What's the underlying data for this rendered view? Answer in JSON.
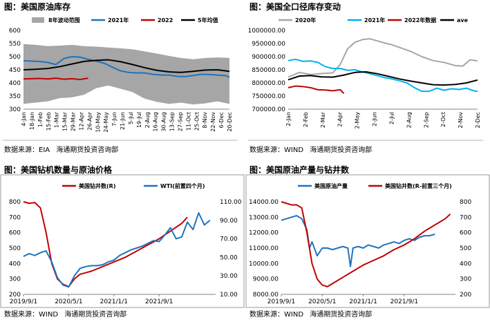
{
  "source_org": "海通期货投资咨询部",
  "panels": [
    {
      "title": "图：美国原油库存",
      "source_label": "数据来源：EIA",
      "chart_data": {
        "type": "line",
        "title": "美国原油库存",
        "ylim": [
          300,
          600
        ],
        "yticks": [
          300,
          350,
          400,
          450,
          500,
          550,
          600
        ],
        "xticks": [
          "4-Jan",
          "18-Jan",
          "1-Feb",
          "15-Feb",
          "1-Mar",
          "15-Mar",
          "29-Mar",
          "12-Apr",
          "26-Apr",
          "10-May",
          "24-May",
          "7-Jun",
          "21-Jun",
          "5-Jul",
          "19-Jul",
          "2-Aug",
          "16-Aug",
          "30-Aug",
          "13-Sep",
          "27-Sep",
          "11-Oct",
          "25-Oct",
          "8-Nov",
          "22-Nov",
          "6-Dec",
          "20-Dec"
        ],
        "x_range": [
          0,
          51
        ],
        "legend": [
          "8年波动范围",
          "2021年",
          "2022",
          "5年均值"
        ],
        "band": {
          "name": "8年波动范围",
          "color": "#a6a6a6",
          "x": [
            0,
            3,
            6,
            9,
            12,
            15,
            18,
            21,
            24,
            27,
            30,
            33,
            36,
            39,
            42,
            45,
            48,
            51
          ],
          "upper": [
            548,
            545,
            540,
            542,
            545,
            540,
            538,
            535,
            532,
            528,
            520,
            512,
            503,
            495,
            490,
            495,
            497,
            495
          ],
          "lower": [
            320,
            325,
            330,
            342,
            345,
            355,
            380,
            390,
            378,
            365,
            340,
            328,
            320,
            325,
            318,
            322,
            330,
            320
          ]
        },
        "series": [
          {
            "name": "2021年",
            "color": "#1e73be",
            "x": [
              0,
              2,
              4,
              6,
              8,
              10,
              12,
              14,
              16,
              18,
              20,
              22,
              24,
              26,
              28,
              30,
              32,
              34,
              36,
              38,
              40,
              42,
              44,
              46,
              48,
              50,
              51
            ],
            "values": [
              485,
              483,
              482,
              478,
              470,
              493,
              500,
              498,
              490,
              483,
              475,
              460,
              446,
              440,
              438,
              438,
              433,
              430,
              430,
              425,
              424,
              428,
              433,
              432,
              430,
              428,
              422
            ]
          },
          {
            "name": "2022",
            "color": "#c00000",
            "x": [
              0,
              2,
              4,
              6,
              8,
              10,
              12,
              14,
              16
            ],
            "values": [
              415,
              416,
              417,
              415,
              418,
              414,
              416,
              413,
              418
            ]
          },
          {
            "name": "5年均值",
            "color": "#000000",
            "x": [
              0,
              3,
              6,
              9,
              12,
              15,
              18,
              21,
              24,
              27,
              30,
              33,
              36,
              39,
              42,
              45,
              48,
              51
            ],
            "values": [
              450,
              452,
              455,
              462,
              472,
              482,
              486,
              488,
              481,
              470,
              458,
              448,
              442,
              440,
              444,
              449,
              450,
              444
            ]
          }
        ]
      }
    },
    {
      "title": "图：美国全口径库存变动",
      "source_label": "数据来源：WIND",
      "chart_data": {
        "type": "line",
        "title": "美国全口径库存变动",
        "ylim": [
          700000,
          1000000
        ],
        "yticks": [
          700000,
          750000,
          800000,
          850000,
          900000,
          950000,
          1000000
        ],
        "ytick_labels": [
          "700000.00",
          "750000.00",
          "800000.00",
          "850000.00",
          "900000.00",
          "950000.00",
          "1000000.00"
        ],
        "xticks": [
          "2-Jan",
          "2-Feb",
          "2-Mar",
          "2-Apr",
          "2-May",
          "2-Jun",
          "2-Jul",
          "2-Aug",
          "2-Sep",
          "2-Oct",
          "2-Nov",
          "2-Dec"
        ],
        "x_range": [
          0,
          51
        ],
        "legend": [
          "2020年",
          "2021年",
          "2022年数据",
          "ave"
        ],
        "legend_labels": [
          "2020年",
          "2021年",
          "2022年数据",
          "ave"
        ],
        "series": [
          {
            "name": "2020年",
            "color": "#a6a6a6",
            "x": [
              0,
              3,
              6,
              9,
              12,
              14,
              16,
              18,
              20,
              22,
              24,
              26,
              28,
              30,
              33,
              36,
              39,
              42,
              45,
              47,
              49,
              51
            ],
            "values": [
              822000,
              840000,
              832000,
              836000,
              838000,
              870000,
              930000,
              955000,
              965000,
              968000,
              960000,
              952000,
              945000,
              935000,
              920000,
              900000,
              885000,
              878000,
              866000,
              864000,
              888000,
              884000
            ]
          },
          {
            "name": "2021年",
            "color": "#00b0f0",
            "x": [
              0,
              2,
              4,
              6,
              8,
              10,
              12,
              14,
              16,
              18,
              20,
              22,
              24,
              26,
              28,
              30,
              32,
              34,
              36,
              38,
              40,
              42,
              44,
              46,
              48,
              50,
              51
            ],
            "values": [
              885000,
              890000,
              882000,
              884000,
              878000,
              862000,
              855000,
              855000,
              848000,
              850000,
              842000,
              835000,
              828000,
              820000,
              815000,
              808000,
              800000,
              782000,
              768000,
              768000,
              780000,
              772000,
              778000,
              775000,
              780000,
              770000,
              768000
            ]
          },
          {
            "name": "2022年数据",
            "color": "#c00000",
            "x": [
              0,
              2,
              4,
              6,
              8,
              10,
              12,
              14,
              15
            ],
            "values": [
              782000,
              788000,
              786000,
              782000,
              774000,
              773000,
              770000,
              774000,
              760000
            ]
          },
          {
            "name": "ave",
            "color": "#000000",
            "x": [
              0,
              3,
              6,
              9,
              12,
              15,
              18,
              21,
              24,
              27,
              30,
              33,
              36,
              39,
              42,
              45,
              48,
              51
            ],
            "values": [
              812000,
              826000,
              828000,
              823000,
              822000,
              830000,
              840000,
              842000,
              835000,
              825000,
              815000,
              807000,
              800000,
              793000,
              792000,
              794000,
              800000,
              811000
            ]
          }
        ]
      }
    },
    {
      "title": "图：美国钻机数量与原油价格",
      "source_label": "数据来源：WIND",
      "chart_data": {
        "type": "line",
        "title": "美国钻机数量与原油价格",
        "ylim": [
          200,
          800
        ],
        "yticks": [
          200,
          300,
          400,
          500,
          600,
          700,
          800
        ],
        "y2lim": [
          10,
          110
        ],
        "y2ticks": [
          10,
          30,
          50,
          70,
          90,
          110
        ],
        "y2tick_labels": [
          "10.00",
          "30.00",
          "50.00",
          "70.00",
          "90.00",
          "110.00"
        ],
        "xticks": [
          "2019/9/1",
          "2020/5/1",
          "2021/1/1",
          "2021/9/1"
        ],
        "x_range": [
          0,
          34
        ],
        "xtick_positions": [
          0,
          8,
          16,
          24
        ],
        "legend": [
          "美国钻井数(R)",
          "WTI(前置四个月)"
        ],
        "legend_labels": [
          "美国钻井数(R)",
          "WTI(前置四个月)"
        ],
        "series": [
          {
            "name": "美国钻井数(R)",
            "axis": "left",
            "color": "#c00000",
            "x": [
              0,
              1,
              2,
              3,
              4,
              5,
              6,
              7,
              8,
              9,
              10,
              12,
              14,
              16,
              18,
              20,
              22,
              24,
              26,
              28,
              29
            ],
            "values": [
              800,
              790,
              795,
              760,
              600,
              400,
              300,
              265,
              250,
              300,
              330,
              350,
              380,
              410,
              440,
              480,
              520,
              560,
              610,
              660,
              700
            ]
          },
          {
            "name": "WTI(前置四个月)",
            "axis": "right",
            "color": "#1e73be",
            "x": [
              0,
              1,
              2,
              3,
              4,
              5,
              6,
              7,
              8,
              9,
              10,
              11,
              12,
              13,
              14,
              15,
              16,
              17,
              18,
              19,
              20,
              21,
              22,
              23,
              24,
              25,
              26,
              27,
              28,
              29,
              30,
              31,
              32,
              33
            ],
            "values": [
              51,
              54,
              52,
              55,
              57,
              45,
              28,
              20,
              18,
              30,
              38,
              40,
              41,
              41,
              42,
              45,
              47,
              52,
              55,
              58,
              60,
              62,
              65,
              68,
              67,
              74,
              82,
              70,
              72,
              88,
              80,
              98,
              85,
              90
            ]
          }
        ]
      }
    },
    {
      "title": "图：美国原油产量与钻井数",
      "source_label": "数据来源：WIND",
      "chart_data": {
        "type": "line",
        "title": "美国原油产量与钻井数",
        "ylim": [
          8000,
          14000
        ],
        "yticks": [
          8000,
          9000,
          10000,
          11000,
          12000,
          13000,
          14000
        ],
        "ytick_labels": [
          "8000.00",
          "9000.00",
          "10000.00",
          "11000.00",
          "12000.00",
          "13000.00",
          "14000.00"
        ],
        "y2lim": [
          200,
          800
        ],
        "y2ticks": [
          200,
          300,
          400,
          500,
          600,
          700,
          800
        ],
        "xticks": [
          "2019/9/1",
          "2020/5/1",
          "2021/1/1",
          "2021/9/1"
        ],
        "x_range": [
          0,
          34
        ],
        "xtick_positions": [
          0,
          8,
          16,
          24
        ],
        "legend": [
          "美国原油产量",
          "美国钻井数(R-前置三个月)"
        ],
        "legend_labels": [
          "美国原油产量",
          "美国钻井数(R-前置三个月)"
        ],
        "series": [
          {
            "name": "美国原油产量",
            "axis": "left",
            "color": "#1e73be",
            "x": [
              0,
              1,
              2,
              3,
              4,
              5,
              5.5,
              6,
              7,
              8,
              9,
              10,
              11,
              12,
              13,
              13.5,
              14,
              15,
              16,
              17,
              18,
              19,
              20,
              21,
              22,
              23,
              24,
              25,
              26,
              27,
              28,
              29,
              30
            ],
            "values": [
              12800,
              12900,
              13000,
              13100,
              12900,
              12200,
              11000,
              11400,
              10500,
              11000,
              11000,
              10900,
              11000,
              11100,
              11000,
              9800,
              11000,
              11100,
              11000,
              11200,
              11100,
              11000,
              11200,
              11300,
              11400,
              11300,
              11500,
              11600,
              11500,
              11700,
              11800,
              11800,
              11900
            ]
          },
          {
            "name": "美国钻井数(R-前置三个月)",
            "axis": "right",
            "color": "#c00000",
            "x": [
              0,
              1,
              2,
              3,
              4,
              5,
              6,
              7,
              8,
              9,
              10,
              12,
              14,
              16,
              18,
              20,
              22,
              24,
              26,
              28,
              30,
              32,
              33
            ],
            "values": [
              800,
              790,
              780,
              780,
              760,
              600,
              400,
              300,
              260,
              250,
              270,
              310,
              350,
              390,
              420,
              450,
              490,
              520,
              560,
              610,
              650,
              690,
              720
            ]
          }
        ]
      }
    }
  ]
}
